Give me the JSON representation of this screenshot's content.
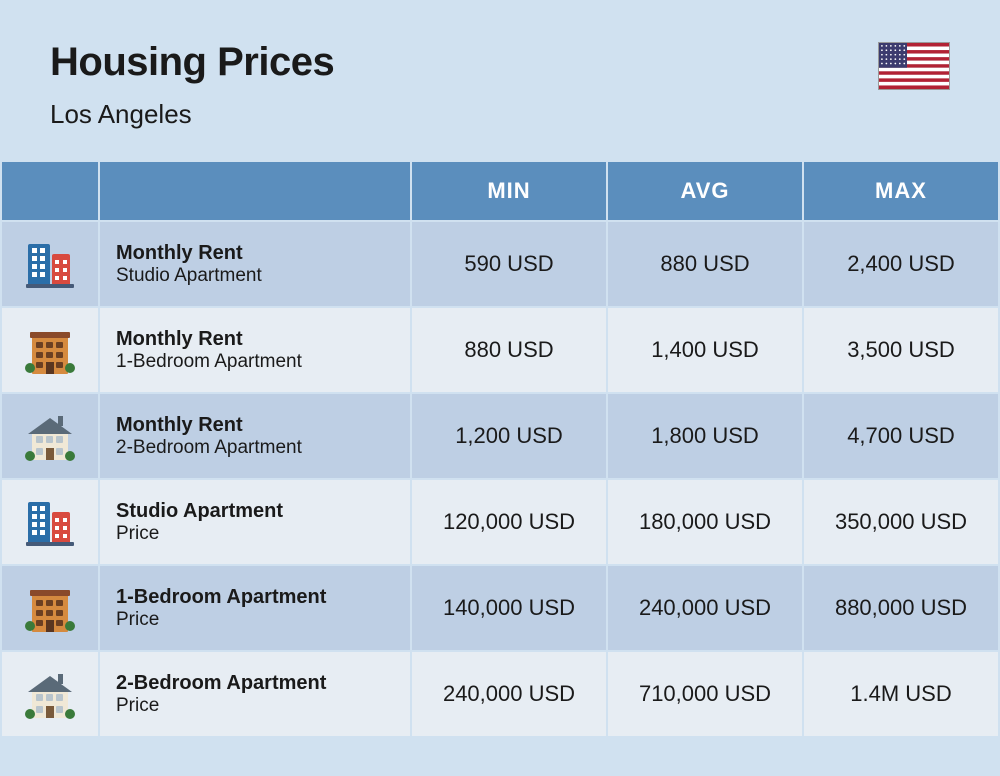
{
  "header": {
    "title": "Housing Prices",
    "subtitle": "Los Angeles"
  },
  "flag": {
    "country": "United States",
    "stripes": [
      "#b22234",
      "#ffffff",
      "#b22234",
      "#ffffff",
      "#b22234",
      "#ffffff",
      "#b22234",
      "#ffffff",
      "#b22234",
      "#ffffff",
      "#b22234",
      "#ffffff",
      "#b22234"
    ],
    "canton": "#3c3b6e",
    "star": "#ffffff"
  },
  "columns": {
    "min": "MIN",
    "avg": "AVG",
    "max": "MAX"
  },
  "colors": {
    "page_bg": "#d0e1f0",
    "header_bg": "#5b8ebd",
    "header_text": "#ffffff",
    "row_a_bg": "#becfe4",
    "row_b_bg": "#e7edf3",
    "text": "#1a1a1a",
    "title_fontsize": 40,
    "subtitle_fontsize": 26,
    "col_header_fontsize": 22,
    "cell_fontsize": 22,
    "label_title_fontsize": 20,
    "label_sub_fontsize": 19
  },
  "icons": {
    "buildings": {
      "blue": "#2b6ea8",
      "red": "#d84a3f",
      "window": "#ffffff",
      "base": "#455a78"
    },
    "orange_apt": {
      "wall": "#d58a3f",
      "window": "#6b3f22",
      "roof": "#8a4a2a",
      "door": "#5a3620",
      "bush": "#3a7a3a"
    },
    "house": {
      "roof": "#5a6a78",
      "wall": "#f0e8d6",
      "window": "#b8c4cc",
      "door": "#7a5a3a",
      "bush": "#3a7a3a",
      "chimney": "#5a6a78"
    }
  },
  "rows": [
    {
      "icon": "buildings",
      "title": "Monthly Rent",
      "sub": "Studio Apartment",
      "min": "590 USD",
      "avg": "880 USD",
      "max": "2,400 USD"
    },
    {
      "icon": "orange_apt",
      "title": "Monthly Rent",
      "sub": "1-Bedroom Apartment",
      "min": "880 USD",
      "avg": "1,400 USD",
      "max": "3,500 USD"
    },
    {
      "icon": "house",
      "title": "Monthly Rent",
      "sub": "2-Bedroom Apartment",
      "min": "1,200 USD",
      "avg": "1,800 USD",
      "max": "4,700 USD"
    },
    {
      "icon": "buildings",
      "title": "Studio Apartment",
      "sub": "Price",
      "min": "120,000 USD",
      "avg": "180,000 USD",
      "max": "350,000 USD"
    },
    {
      "icon": "orange_apt",
      "title": "1-Bedroom Apartment",
      "sub": "Price",
      "min": "140,000 USD",
      "avg": "240,000 USD",
      "max": "880,000 USD"
    },
    {
      "icon": "house",
      "title": "2-Bedroom Apartment",
      "sub": "Price",
      "min": "240,000 USD",
      "avg": "710,000 USD",
      "max": "1.4M USD"
    }
  ]
}
